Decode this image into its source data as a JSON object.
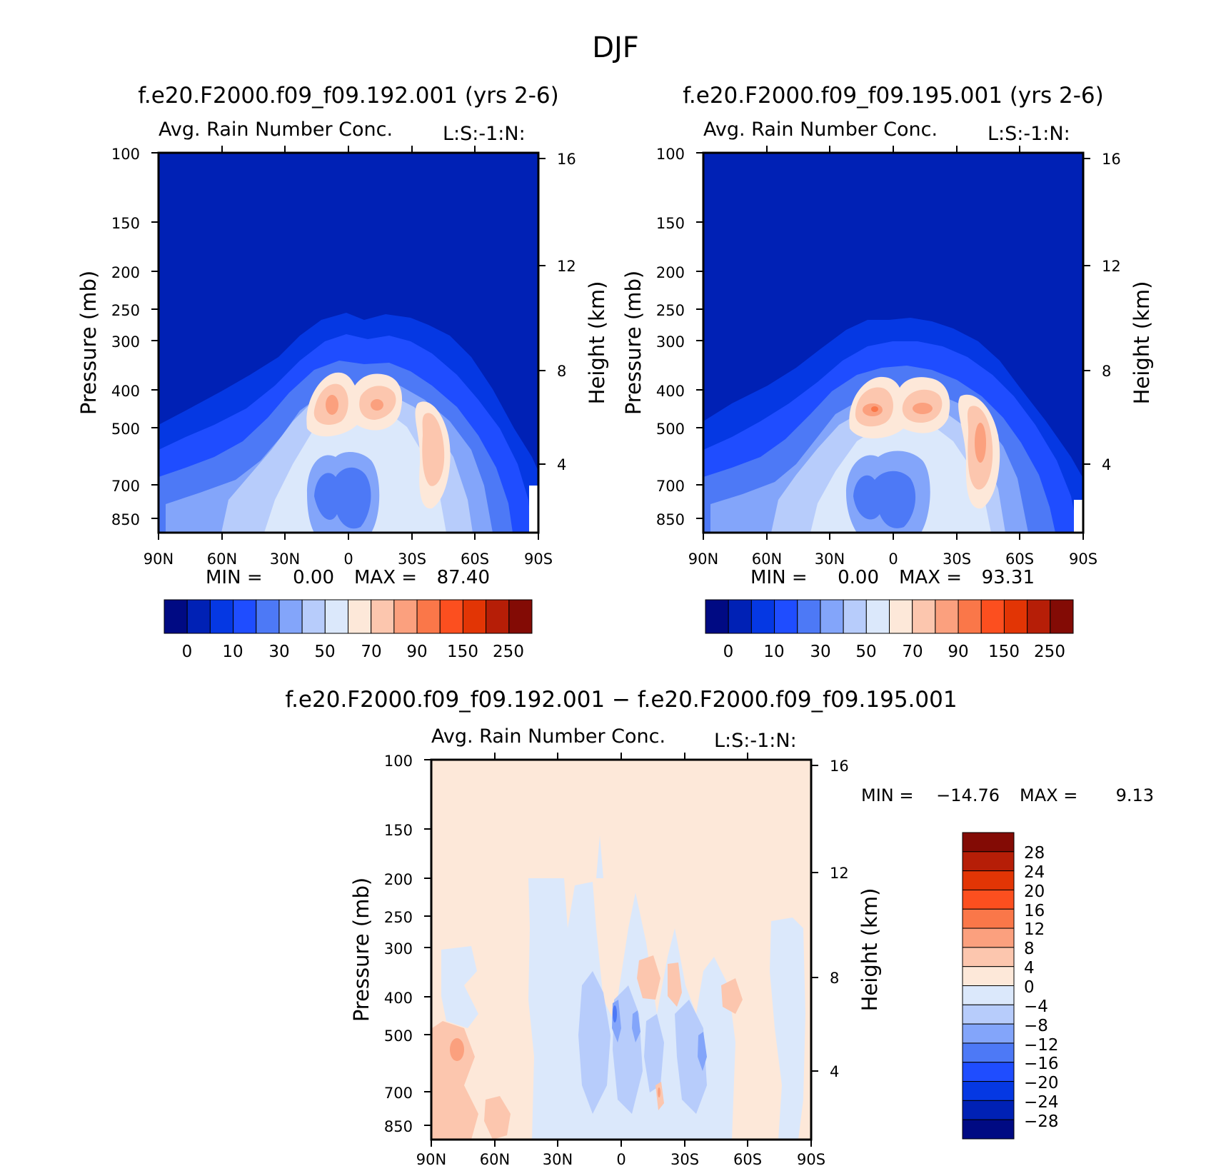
{
  "figure_title": "DJF",
  "chart_data": [
    {
      "id": "panel1",
      "type": "contour",
      "title": "f.e20.F2000.f09_f09.192.001 (yrs 2-6)",
      "subtitle": "Avg. Rain Number Conc.",
      "units_label": "L:S:-1:N:",
      "xlabel": "",
      "ylabel": "Pressure (mb)",
      "y2label": "Height (km)",
      "x_ticks": [
        "90N",
        "60N",
        "30N",
        "0",
        "30S",
        "60S",
        "90S"
      ],
      "x_range": [
        90,
        -90
      ],
      "y_ticks": [
        100,
        150,
        200,
        250,
        300,
        400,
        500,
        700,
        850
      ],
      "y_range": [
        100,
        925
      ],
      "y_scale": "log",
      "y2_ticks": [
        16,
        12,
        8,
        4
      ],
      "stats": {
        "min_label": "MIN =",
        "min": "0.00",
        "max_label": "MAX =",
        "max": "87.40"
      },
      "colorbar_levels": [
        "0",
        "10",
        "30",
        "50",
        "70",
        "90",
        "150",
        "250"
      ],
      "colorbar_colors": [
        "#000a83",
        "#0021b5",
        "#0538e3",
        "#1f4dff",
        "#4d79f6",
        "#83a5fa",
        "#b7ccfb",
        "#dbe8fb",
        "#fde8d9",
        "#fcc6ae",
        "#fba07e",
        "#fa7749",
        "#fc4f1f",
        "#e23505",
        "#b61e07",
        "#830b05"
      ],
      "approx_peaks": [
        {
          "lat": 15,
          "p": 450,
          "value": 85
        },
        {
          "lat": -12,
          "p": 450,
          "value": 80
        },
        {
          "lat": -35,
          "p": 580,
          "value": 72
        }
      ]
    },
    {
      "id": "panel2",
      "type": "contour",
      "title": "f.e20.F2000.f09_f09.195.001 (yrs 2-6)",
      "subtitle": "Avg. Rain Number Conc.",
      "units_label": "L:S:-1:N:",
      "xlabel": "",
      "ylabel": "Pressure (mb)",
      "y2label": "Height (km)",
      "x_ticks": [
        "90N",
        "60N",
        "30N",
        "0",
        "30S",
        "60S",
        "90S"
      ],
      "x_range": [
        90,
        -90
      ],
      "y_ticks": [
        100,
        150,
        200,
        250,
        300,
        400,
        500,
        700,
        850
      ],
      "y_range": [
        100,
        925
      ],
      "y_scale": "log",
      "y2_ticks": [
        16,
        12,
        8,
        4
      ],
      "stats": {
        "min_label": "MIN =",
        "min": "0.00",
        "max_label": "MAX =",
        "max": "93.31"
      },
      "colorbar_levels": [
        "0",
        "10",
        "30",
        "50",
        "70",
        "90",
        "150",
        "250"
      ],
      "colorbar_colors": [
        "#000a83",
        "#0021b5",
        "#0538e3",
        "#1f4dff",
        "#4d79f6",
        "#83a5fa",
        "#b7ccfb",
        "#dbe8fb",
        "#fde8d9",
        "#fcc6ae",
        "#fba07e",
        "#fa7749",
        "#fc4f1f",
        "#e23505",
        "#b61e07",
        "#830b05"
      ],
      "approx_peaks": [
        {
          "lat": 10,
          "p": 450,
          "value": 93
        },
        {
          "lat": -12,
          "p": 450,
          "value": 85
        },
        {
          "lat": -40,
          "p": 560,
          "value": 80
        }
      ]
    },
    {
      "id": "panel3",
      "type": "contour",
      "title": "f.e20.F2000.f09_f09.192.001 − f.e20.F2000.f09_f09.195.001",
      "subtitle": "Avg. Rain Number Conc.",
      "units_label": "L:S:-1:N:",
      "xlabel": "",
      "ylabel": "Pressure (mb)",
      "y2label": "Height (km)",
      "x_ticks": [
        "90N",
        "60N",
        "30N",
        "0",
        "30S",
        "60S",
        "90S"
      ],
      "x_range": [
        90,
        -90
      ],
      "y_ticks": [
        100,
        150,
        200,
        250,
        300,
        400,
        500,
        700,
        850
      ],
      "y_range": [
        100,
        925
      ],
      "y_scale": "log",
      "y2_ticks": [
        16,
        12,
        8,
        4
      ],
      "stats": {
        "min_label": "MIN =",
        "min": "−14.76",
        "max_label": "MAX =",
        "max": "9.13"
      },
      "colorbar_levels": [
        "28",
        "24",
        "20",
        "16",
        "12",
        "8",
        "4",
        "0",
        "−4",
        "−8",
        "−12",
        "−16",
        "−20",
        "−24",
        "−28"
      ],
      "colorbar_colors": [
        "#830b05",
        "#b61e07",
        "#e23505",
        "#fc4f1f",
        "#fa7749",
        "#fba07e",
        "#fcc6ae",
        "#fde8d9",
        "#dbe8fb",
        "#b7ccfb",
        "#83a5fa",
        "#4d79f6",
        "#1f4dff",
        "#0538e3",
        "#0021b5",
        "#000a83"
      ]
    }
  ]
}
